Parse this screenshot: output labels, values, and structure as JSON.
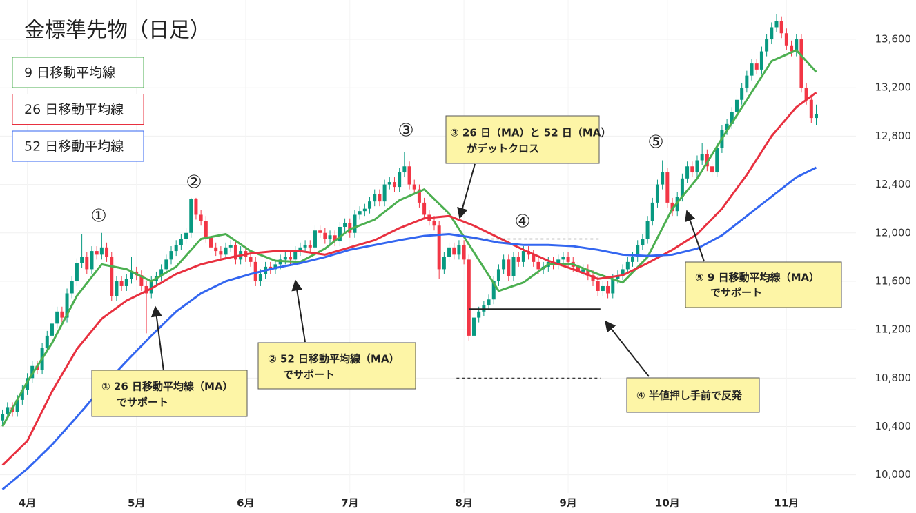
{
  "chart_data": {
    "type": "candlestick",
    "title": "金標準先物（日足）",
    "up_color": "#089981",
    "down_color": "#f23645",
    "xlim": [
      -0.5,
      172
    ],
    "xticks": [
      {
        "value": 5,
        "label": "4月"
      },
      {
        "value": 27,
        "label": "5月"
      },
      {
        "value": 49,
        "label": "6月"
      },
      {
        "value": 70,
        "label": "7月"
      },
      {
        "value": 93,
        "label": "8月"
      },
      {
        "value": 114,
        "label": "9月"
      },
      {
        "value": 134,
        "label": "10月"
      },
      {
        "value": 158,
        "label": "11月"
      }
    ],
    "ylim": [
      9850,
      13925
    ],
    "yticks": [
      {
        "value": 10000,
        "label": "10,000"
      },
      {
        "value": 10400,
        "label": "10,400"
      },
      {
        "value": 10800,
        "label": "10,800"
      },
      {
        "value": 11200,
        "label": "11,200"
      },
      {
        "value": 11600,
        "label": "11,600"
      },
      {
        "value": 12000,
        "label": "12,000"
      },
      {
        "value": 12400,
        "label": "12,400"
      },
      {
        "value": 12800,
        "label": "12,800"
      },
      {
        "value": 13200,
        "label": "13,200"
      },
      {
        "value": 13600,
        "label": "13,600"
      }
    ],
    "grid": true,
    "candles": {
      "open": [
        10450,
        10500,
        10560,
        10520,
        10620,
        10700,
        10800,
        10900,
        10870,
        11050,
        11150,
        11250,
        11350,
        11300,
        11500,
        11600,
        11750,
        11800,
        11700,
        11850,
        11820,
        11880,
        11800,
        11480,
        11600,
        11560,
        11620,
        11680,
        11650,
        11560,
        11500,
        11600,
        11640,
        11700,
        11780,
        11850,
        11900,
        11950,
        12000,
        12280,
        12150,
        12100,
        11960,
        11880,
        11850,
        11820,
        11880,
        11900,
        11780,
        11850,
        11800,
        11760,
        11600,
        11660,
        11720,
        11700,
        11740,
        11780,
        11800,
        11780,
        11850,
        11880,
        11900,
        11880,
        12020,
        12000,
        11950,
        11980,
        11930,
        12050,
        12080,
        12000,
        12150,
        12180,
        12200,
        12260,
        12320,
        12260,
        12400,
        12420,
        12380,
        12500,
        12550,
        12400,
        12360,
        12250,
        12150,
        12100,
        12060,
        11700,
        11800,
        11880,
        11820,
        11900,
        11780,
        11150,
        11300,
        11350,
        11400,
        11450,
        11600,
        11700,
        11780,
        11640,
        11800,
        11760,
        11850,
        11820,
        11760,
        11700,
        11720,
        11760,
        11740,
        11780,
        11800,
        11760,
        11720,
        11680,
        11700,
        11650,
        11600,
        11520,
        11560,
        11500,
        11620,
        11650,
        11700,
        11760,
        11800,
        11900,
        11950,
        12100,
        12250,
        12400,
        12500,
        12250,
        12180,
        12300,
        12450,
        12550,
        12500,
        12600,
        12650,
        12550,
        12500,
        12700,
        12850,
        12900,
        13000,
        13100,
        13200,
        13300,
        13400,
        13350,
        13500,
        13600,
        13700,
        13750,
        13650,
        13550,
        13500,
        13600,
        13200,
        13100,
        12950
      ],
      "high": [
        10540,
        10600,
        10600,
        10660,
        10740,
        10840,
        10940,
        10940,
        11090,
        11190,
        11290,
        11390,
        11390,
        11540,
        11640,
        11790,
        11990,
        11840,
        11890,
        11890,
        12000,
        11920,
        11840,
        11640,
        11640,
        11660,
        11800,
        11720,
        11690,
        11600,
        11640,
        11680,
        11740,
        11820,
        11890,
        11940,
        11990,
        12040,
        12290,
        12290,
        12190,
        12140,
        12000,
        11920,
        11890,
        11920,
        11940,
        11940,
        11890,
        11890,
        11840,
        11800,
        11700,
        11760,
        11760,
        11780,
        11820,
        11840,
        11840,
        11890,
        11920,
        11940,
        11940,
        12060,
        12060,
        12040,
        12020,
        12020,
        12090,
        12120,
        12120,
        12190,
        12220,
        12240,
        12300,
        12360,
        12360,
        12440,
        12460,
        12460,
        12540,
        12670,
        12590,
        12440,
        12400,
        12290,
        12190,
        12140,
        12100,
        11840,
        11920,
        11920,
        11940,
        11940,
        11820,
        11340,
        11390,
        11440,
        11490,
        11640,
        11740,
        11820,
        11820,
        11840,
        11840,
        11890,
        11890,
        11860,
        11800,
        11760,
        11800,
        11800,
        11820,
        11840,
        11840,
        11800,
        11760,
        11740,
        11740,
        11690,
        11640,
        11600,
        11600,
        11660,
        11690,
        11740,
        11800,
        11840,
        11940,
        11990,
        12140,
        12290,
        12440,
        12600,
        12540,
        12290,
        12340,
        12490,
        12590,
        12590,
        12640,
        12740,
        12690,
        12590,
        12740,
        12890,
        12940,
        13040,
        13140,
        13240,
        13340,
        13440,
        13440,
        13540,
        13640,
        13740,
        13810,
        13790,
        13690,
        13590,
        13640,
        13640,
        13240,
        13140,
        13060
      ],
      "low": [
        10410,
        10460,
        10480,
        10480,
        10580,
        10660,
        10760,
        10830,
        10830,
        11010,
        11110,
        11210,
        11260,
        11260,
        11460,
        11560,
        11710,
        11660,
        11660,
        11780,
        11780,
        11760,
        11440,
        11440,
        11520,
        11520,
        11580,
        11610,
        11520,
        11170,
        11460,
        11560,
        11600,
        11660,
        11740,
        11810,
        11860,
        11910,
        11960,
        12110,
        12060,
        11920,
        11840,
        11810,
        11780,
        11780,
        11840,
        11740,
        11740,
        11760,
        11720,
        11560,
        11560,
        11620,
        11660,
        11660,
        11700,
        11740,
        11740,
        11740,
        11810,
        11840,
        11840,
        11840,
        11960,
        11910,
        11910,
        11890,
        11890,
        12010,
        11960,
        11960,
        12110,
        12140,
        12160,
        12220,
        12220,
        12220,
        12360,
        12340,
        12340,
        12460,
        12360,
        12320,
        12210,
        12110,
        12060,
        12020,
        11620,
        11660,
        11760,
        11780,
        11780,
        11740,
        11110,
        10800,
        11260,
        11310,
        11360,
        11410,
        11560,
        11660,
        11600,
        11600,
        11720,
        11720,
        11780,
        11720,
        11660,
        11660,
        11680,
        11700,
        11700,
        11740,
        11720,
        11680,
        11640,
        11640,
        11610,
        11560,
        11480,
        11480,
        11460,
        11460,
        11580,
        11610,
        11660,
        11720,
        11760,
        11860,
        11910,
        12060,
        12210,
        12360,
        12210,
        12140,
        12140,
        12260,
        12410,
        12460,
        12460,
        12560,
        12510,
        12460,
        12460,
        12660,
        12810,
        12860,
        12960,
        13060,
        13160,
        13260,
        13310,
        13310,
        13460,
        13560,
        13660,
        13610,
        13510,
        13460,
        13460,
        13160,
        13060,
        12910,
        12890
      ],
      "close": [
        10500,
        10560,
        10520,
        10620,
        10700,
        10800,
        10900,
        10870,
        11050,
        11150,
        11250,
        11350,
        11300,
        11500,
        11600,
        11750,
        11800,
        11700,
        11850,
        11820,
        11880,
        11800,
        11480,
        11600,
        11560,
        11620,
        11680,
        11650,
        11560,
        11500,
        11600,
        11640,
        11700,
        11780,
        11850,
        11900,
        11950,
        12000,
        12280,
        12150,
        12100,
        11960,
        11880,
        11850,
        11820,
        11880,
        11900,
        11780,
        11850,
        11800,
        11760,
        11600,
        11660,
        11720,
        11700,
        11740,
        11780,
        11800,
        11780,
        11850,
        11880,
        11900,
        11880,
        12020,
        12000,
        11950,
        11980,
        11930,
        12050,
        12080,
        12000,
        12150,
        12180,
        12200,
        12260,
        12320,
        12260,
        12400,
        12420,
        12380,
        12500,
        12550,
        12400,
        12360,
        12250,
        12150,
        12100,
        12060,
        11700,
        11800,
        11880,
        11820,
        11900,
        11780,
        11150,
        11300,
        11350,
        11400,
        11450,
        11600,
        11700,
        11780,
        11640,
        11800,
        11760,
        11850,
        11820,
        11760,
        11700,
        11720,
        11760,
        11740,
        11780,
        11800,
        11760,
        11720,
        11680,
        11700,
        11650,
        11600,
        11520,
        11560,
        11500,
        11620,
        11650,
        11700,
        11760,
        11800,
        11900,
        11950,
        12100,
        12250,
        12400,
        12500,
        12250,
        12180,
        12300,
        12450,
        12550,
        12500,
        12600,
        12650,
        12550,
        12500,
        12700,
        12850,
        12900,
        13000,
        13100,
        13200,
        13300,
        13400,
        13350,
        13500,
        13600,
        13700,
        13750,
        13650,
        13550,
        13500,
        13600,
        13200,
        13100,
        12950,
        12980
      ]
    },
    "series": [
      {
        "name": "9 日移動平均線",
        "color": "#4caf50",
        "x": [
          0,
          5,
          10,
          15,
          20,
          25,
          30,
          35,
          40,
          45,
          50,
          55,
          60,
          65,
          70,
          75,
          80,
          85,
          90,
          95,
          100,
          105,
          110,
          115,
          120,
          125,
          130,
          135,
          140,
          145,
          150,
          155,
          160,
          164
        ],
        "values": [
          10400,
          10770,
          11090,
          11480,
          11740,
          11700,
          11600,
          11720,
          11950,
          11990,
          11850,
          11770,
          11760,
          11870,
          12030,
          12110,
          12270,
          12360,
          12160,
          11840,
          11520,
          11590,
          11740,
          11740,
          11660,
          11590,
          11800,
          12200,
          12450,
          12780,
          13100,
          13420,
          13510,
          13330
        ]
      },
      {
        "name": "26 日移動平均線",
        "color": "#e8303f",
        "x": [
          0,
          5,
          10,
          15,
          20,
          25,
          30,
          35,
          40,
          45,
          50,
          55,
          60,
          65,
          70,
          75,
          80,
          85,
          90,
          95,
          100,
          105,
          110,
          115,
          120,
          125,
          130,
          135,
          140,
          145,
          150,
          155,
          160,
          164
        ],
        "values": [
          10080,
          10280,
          10690,
          11040,
          11290,
          11440,
          11540,
          11660,
          11740,
          11790,
          11830,
          11850,
          11850,
          11820,
          11880,
          11940,
          12040,
          12120,
          12140,
          12060,
          11960,
          11860,
          11770,
          11700,
          11620,
          11650,
          11750,
          11860,
          11990,
          12200,
          12480,
          12800,
          13040,
          13160
        ]
      },
      {
        "name": "52 日移動平均線",
        "color": "#3366f0",
        "x": [
          0,
          5,
          10,
          15,
          20,
          25,
          30,
          35,
          40,
          45,
          50,
          55,
          60,
          65,
          70,
          75,
          80,
          85,
          90,
          95,
          100,
          105,
          110,
          115,
          120,
          125,
          130,
          135,
          140,
          145,
          150,
          155,
          160,
          164
        ],
        "values": [
          9880,
          10050,
          10250,
          10480,
          10720,
          10940,
          11150,
          11350,
          11500,
          11600,
          11660,
          11710,
          11750,
          11800,
          11860,
          11900,
          11940,
          11975,
          11990,
          11960,
          11920,
          11900,
          11900,
          11890,
          11860,
          11820,
          11810,
          11820,
          11870,
          11980,
          12140,
          12300,
          12460,
          12540
        ]
      }
    ],
    "levels": [
      {
        "value": 11950,
        "x": [
          94,
          120.5
        ],
        "style": "dashed"
      },
      {
        "value": 11370,
        "x": [
          94,
          120.5
        ],
        "style": "solid"
      },
      {
        "value": 10800,
        "x": [
          91.5,
          120.5
        ],
        "style": "dashed"
      }
    ],
    "markers": [
      "①",
      "②",
      "③",
      "④",
      "⑤"
    ],
    "callouts": [
      {
        "lines": [
          "① 26 日移動平均線（MA）",
          "でサポート"
        ]
      },
      {
        "lines": [
          "② 52 日移動平均線（MA）",
          "でサポート"
        ]
      },
      {
        "lines": [
          "③ 26 日（MA）と 52 日（MA）",
          "がデットクロス"
        ]
      },
      {
        "lines": [
          "⑤ 9 日移動平均線（MA）",
          "でサポート"
        ]
      },
      {
        "lines": [
          "④ 半値押し手前で反発"
        ]
      }
    ]
  }
}
